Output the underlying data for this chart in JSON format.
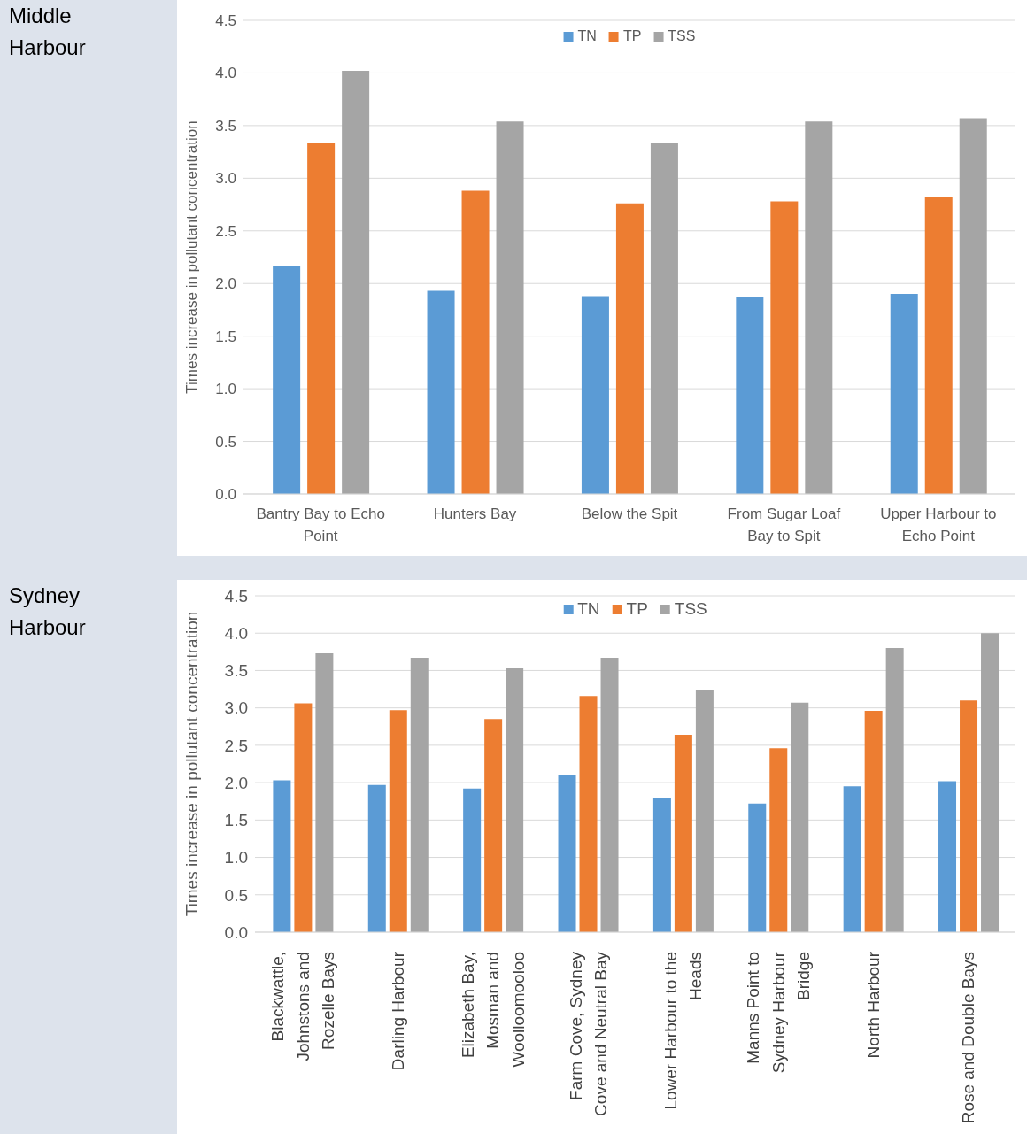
{
  "chart_data": [
    {
      "type": "bar",
      "annotations": [
        "Middle Harbour"
      ],
      "ylabel": "Times increase in pollutant concentration",
      "categories": [
        "Bantry Bay to Echo Point",
        "Hunters Bay",
        "Below the Spit",
        "From Sugar Loaf Bay to Spit",
        "Upper Harbour to Echo Point"
      ],
      "series": [
        {
          "name": "TN",
          "color": "#5b9bd5",
          "values": [
            2.17,
            1.93,
            1.88,
            1.87,
            1.9
          ]
        },
        {
          "name": "TP",
          "color": "#ed7d31",
          "values": [
            3.33,
            2.88,
            2.76,
            2.78,
            2.82
          ]
        },
        {
          "name": "TSS",
          "color": "#a5a5a5",
          "values": [
            4.02,
            3.54,
            3.34,
            3.54,
            3.57
          ]
        }
      ],
      "ylim": [
        0,
        4.5
      ],
      "yticks": [
        {
          "value": 0,
          "label": "0.0"
        },
        0.5,
        {
          "value": 1,
          "label": "1.0"
        },
        1.5,
        {
          "value": 2,
          "label": "2.0"
        },
        2.5,
        {
          "value": 3,
          "label": "3.0"
        },
        3.5,
        {
          "value": 4,
          "label": "4.0"
        },
        4.5
      ],
      "grid": "y",
      "legend": "top"
    },
    {
      "type": "bar",
      "annotations": [
        "Sydney Harbour"
      ],
      "ylabel": "Times increase in pollutant concentration",
      "categories": [
        "Blackwattle, Johnstons and Rozelle Bays",
        "Darling Harbour",
        "Elizabeth Bay, Mosman and Woolloomooloo",
        "Farm Cove, Sydney Cove and Neutral Bay",
        "Lower Harbour to the Heads",
        "Manns Point to Sydney Harbour Bridge",
        "North Harbour",
        "Rose and Double Bays"
      ],
      "series": [
        {
          "name": "TN",
          "color": "#5b9bd5",
          "values": [
            2.03,
            1.97,
            1.92,
            2.1,
            1.8,
            1.72,
            1.95,
            2.02
          ]
        },
        {
          "name": "TP",
          "color": "#ed7d31",
          "values": [
            3.06,
            2.97,
            2.85,
            3.16,
            2.64,
            2.46,
            2.96,
            3.1
          ]
        },
        {
          "name": "TSS",
          "color": "#a5a5a5",
          "values": [
            3.73,
            3.67,
            3.53,
            3.67,
            3.24,
            3.07,
            3.8,
            4.0
          ]
        }
      ],
      "ylim": [
        0,
        4.5
      ],
      "yticks": [
        {
          "value": 0,
          "label": "0.0"
        },
        0.5,
        {
          "value": 1,
          "label": "1.0"
        },
        1.5,
        {
          "value": 2,
          "label": "2.0"
        },
        2.5,
        {
          "value": 3,
          "label": "3.0"
        },
        3.5,
        {
          "value": 4,
          "label": "4.0"
        },
        4.5
      ],
      "grid": "y",
      "legend": "top"
    }
  ]
}
